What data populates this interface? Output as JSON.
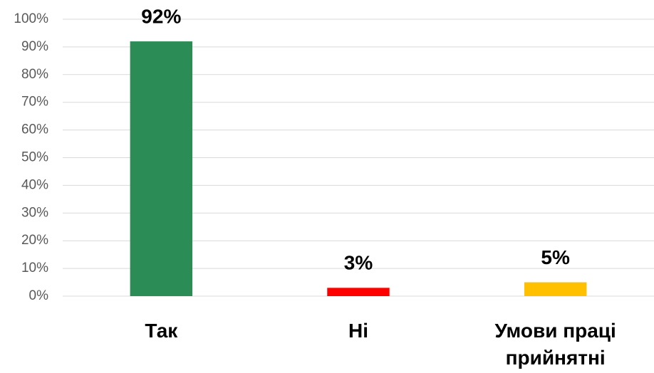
{
  "chart_data": {
    "type": "bar",
    "categories": [
      "Так",
      "Ні",
      "Умови праці прийнятні"
    ],
    "values": [
      92,
      3,
      5
    ],
    "value_labels": [
      "92%",
      "3%",
      "5%"
    ],
    "colors": [
      "#2b8c55",
      "#ff0000",
      "#ffc000"
    ],
    "ylim": [
      0,
      100
    ],
    "yticks": [
      {
        "value": 0,
        "label": "0%"
      },
      {
        "value": 10,
        "label": "10%"
      },
      {
        "value": 20,
        "label": "20%"
      },
      {
        "value": 30,
        "label": "30%"
      },
      {
        "value": 40,
        "label": "40%"
      },
      {
        "value": 50,
        "label": "50%"
      },
      {
        "value": 60,
        "label": "60%"
      },
      {
        "value": 70,
        "label": "70%"
      },
      {
        "value": 80,
        "label": "80%"
      },
      {
        "value": 90,
        "label": "90%"
      },
      {
        "value": 100,
        "label": "100%"
      }
    ],
    "grid": true
  }
}
